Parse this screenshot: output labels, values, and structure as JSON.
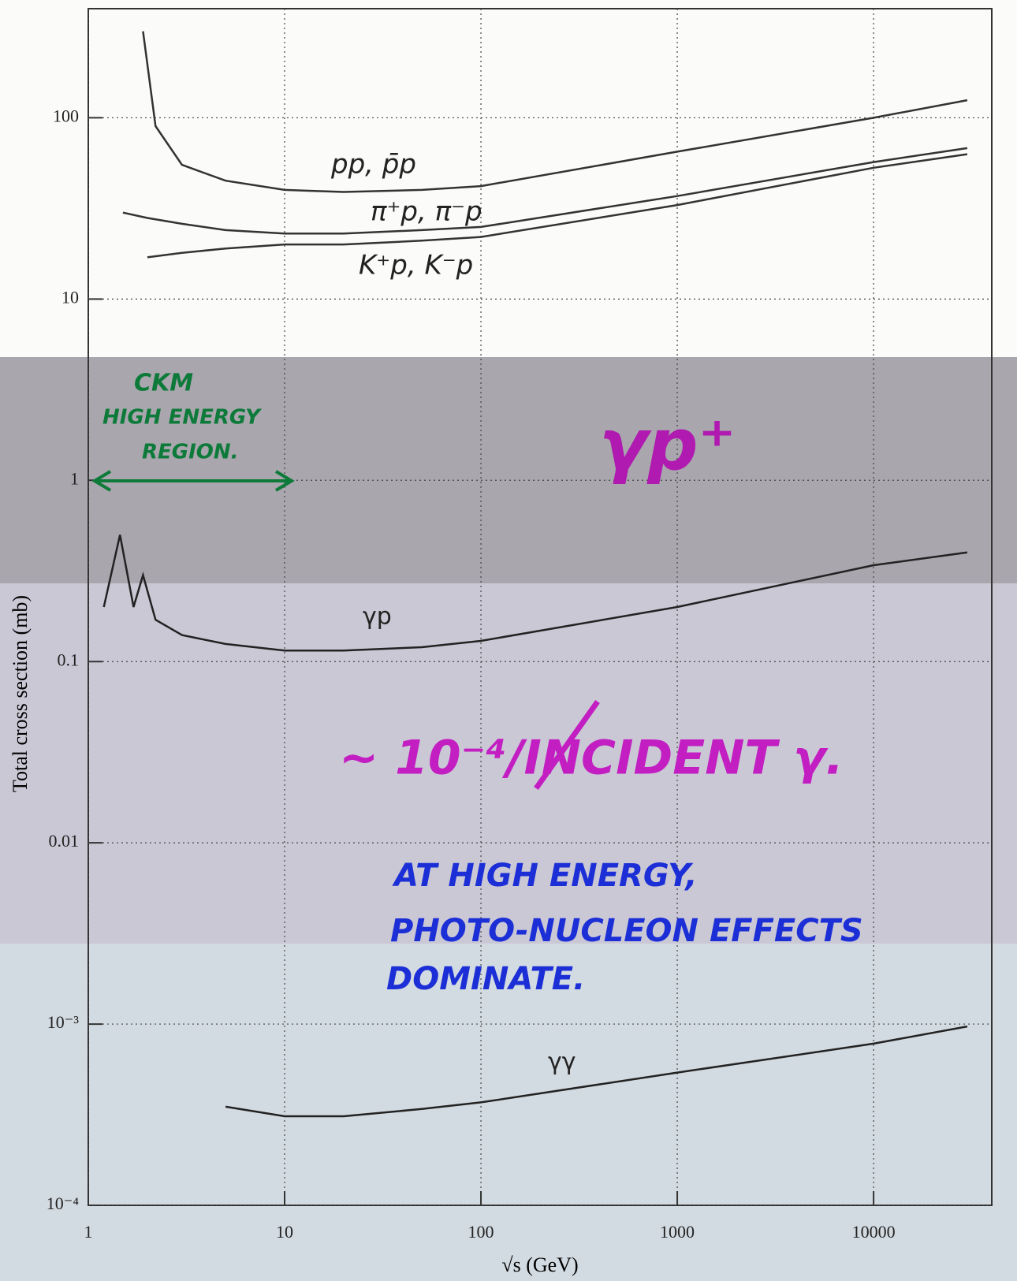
{
  "chart_data": {
    "type": "line",
    "xlabel": "√s (GeV)",
    "ylabel": "Total cross section (mb)",
    "log_x": true,
    "log_y": true,
    "grid": true,
    "xlim": [
      1,
      40000
    ],
    "ylim": [
      0.0001,
      400
    ],
    "xticks": [
      1,
      10,
      100,
      1000,
      10000
    ],
    "yticks": [
      {
        "value": 0.0001,
        "label": "10⁻⁴"
      },
      {
        "value": 0.001,
        "label": "10⁻³"
      },
      0.01,
      0.1,
      1,
      10,
      100
    ],
    "series": [
      {
        "name": "pp, p̄p",
        "color": "#333333",
        "x": [
          1.9,
          2.2,
          3,
          5,
          10,
          20,
          50,
          100,
          1000,
          10000,
          30000
        ],
        "values": [
          300,
          90,
          55,
          45,
          40,
          39,
          40,
          42,
          65,
          100,
          125
        ]
      },
      {
        "name": "π⁺p, π⁻p",
        "color": "#333333",
        "x": [
          1.5,
          2,
          3,
          5,
          10,
          20,
          50,
          100,
          1000,
          10000,
          30000
        ],
        "values": [
          30,
          28,
          26,
          24,
          23,
          23,
          24,
          25,
          37,
          57,
          68
        ]
      },
      {
        "name": "K⁺p, K⁻p",
        "color": "#333333",
        "x": [
          2,
          3,
          5,
          10,
          20,
          50,
          100,
          1000,
          10000,
          30000
        ],
        "values": [
          17,
          18,
          19,
          20,
          20,
          21,
          22,
          33,
          53,
          63
        ]
      },
      {
        "name": "γp",
        "color": "#222222",
        "x": [
          1.2,
          1.45,
          1.7,
          1.9,
          2.2,
          3,
          5,
          10,
          20,
          50,
          100,
          1000,
          10000,
          30000
        ],
        "values": [
          0.2,
          0.5,
          0.2,
          0.3,
          0.17,
          0.14,
          0.125,
          0.115,
          0.115,
          0.12,
          0.13,
          0.2,
          0.34,
          0.4
        ]
      },
      {
        "name": "γγ",
        "color": "#222222",
        "x": [
          5,
          10,
          20,
          50,
          100,
          1000,
          10000,
          30000
        ],
        "values": [
          0.00035,
          0.00031,
          0.00031,
          0.00034,
          0.00037,
          0.00054,
          0.00078,
          0.00097
        ]
      }
    ],
    "annotations": [
      {
        "text": "CKM",
        "color": "#0d7a3a"
      },
      {
        "text": "HIGH ENERGY",
        "color": "#0d7a3a"
      },
      {
        "text": "REGION.",
        "color": "#0d7a3a"
      },
      {
        "text": "γp⁺",
        "color": "#b01ab0"
      },
      {
        "text": "~ 10⁻⁴/INCIDENT γ.",
        "color": "#c21ec2"
      },
      {
        "text": "AT HIGH ENERGY,",
        "color": "#1c2fd6"
      },
      {
        "text": "PHOTO-NUCLEON EFFECTS",
        "color": "#1c2fd6"
      },
      {
        "text": "DOMINATE.",
        "color": "#1c2fd6"
      }
    ]
  }
}
